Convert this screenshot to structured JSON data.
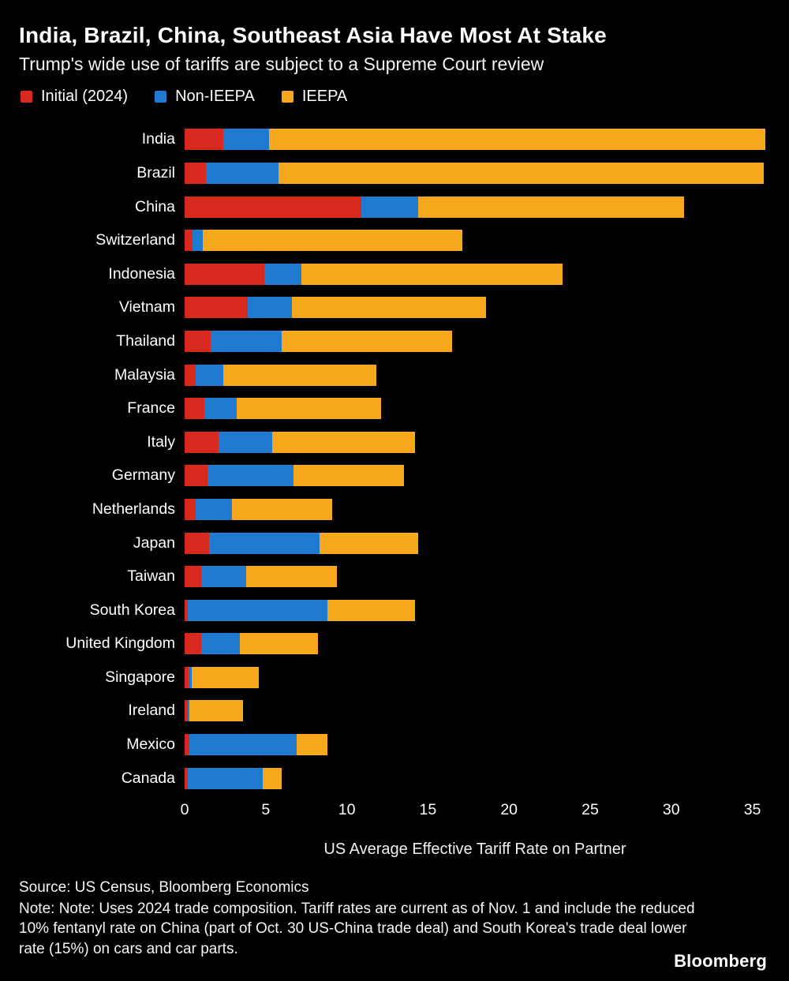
{
  "header": {
    "title": "India, Brazil, China, Southeast Asia Have Most At Stake",
    "subtitle": "Trump's wide use of tariffs are subject to a Supreme Court review"
  },
  "legend": [
    {
      "label": "Initial (2024)",
      "color": "#d8291e"
    },
    {
      "label": "Non-IEEPA",
      "color": "#1f7bd0"
    },
    {
      "label": "IEEPA",
      "color": "#f6a71c"
    }
  ],
  "chart_data": {
    "type": "bar",
    "orientation": "horizontal",
    "stacked": true,
    "title": "India, Brazil, China, Southeast Asia Have Most At Stake",
    "subtitle": "Trump's wide use of tariffs are subject to a Supreme Court review",
    "xlabel": "US Average Effective Tariff Rate on Partner",
    "ylabel": "",
    "xlim": [
      0,
      35.8
    ],
    "xticks": [
      0,
      5,
      10,
      15,
      20,
      25,
      30,
      35
    ],
    "grid": false,
    "legend_position": "top",
    "categories": [
      "India",
      "Brazil",
      "China",
      "Switzerland",
      "Indonesia",
      "Vietnam",
      "Thailand",
      "Malaysia",
      "France",
      "Italy",
      "Germany",
      "Netherlands",
      "Japan",
      "Taiwan",
      "South Korea",
      "United Kingdom",
      "Singapore",
      "Ireland",
      "Mexico",
      "Canada"
    ],
    "series": [
      {
        "name": "Initial (2024)",
        "key": "initial-2024",
        "color": "#d8291e",
        "values": [
          2.4,
          1.3,
          10.9,
          0.5,
          4.9,
          3.9,
          1.6,
          0.7,
          1.2,
          2.1,
          1.4,
          0.7,
          1.5,
          1.0,
          0.2,
          1.0,
          0.25,
          0.2,
          0.3,
          0.2
        ]
      },
      {
        "name": "Non-IEEPA",
        "key": "non-ieepa",
        "color": "#1f7bd0",
        "values": [
          2.8,
          4.5,
          3.5,
          0.6,
          2.3,
          2.7,
          4.4,
          1.7,
          2.0,
          3.3,
          5.3,
          2.2,
          6.8,
          2.8,
          8.6,
          2.4,
          0.2,
          0.1,
          6.6,
          4.6
        ]
      },
      {
        "name": "IEEPA",
        "key": "ieepa",
        "color": "#f6a71c",
        "values": [
          30.6,
          29.9,
          16.4,
          16.0,
          16.1,
          12.0,
          10.5,
          9.4,
          8.9,
          8.8,
          6.8,
          6.2,
          6.1,
          5.6,
          5.4,
          4.8,
          4.1,
          3.3,
          1.9,
          1.2
        ]
      }
    ]
  },
  "footer": {
    "source": "Source: US Census, Bloomberg Economics",
    "note": "Note: Note: Uses 2024 trade composition. Tariff rates are current as of Nov. 1 and include the reduced 10% fentanyl rate on China (part of Oct. 30 US-China trade deal) and South Korea's trade deal lower rate (15%) on cars and car parts.",
    "brand": "Bloomberg"
  }
}
